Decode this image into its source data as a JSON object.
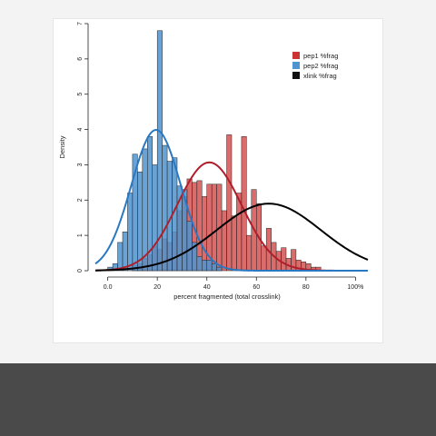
{
  "chart_data": {
    "type": "bar",
    "subtype": "histogram-with-density-curves",
    "xlabel": "percent fragmented (total crosslink)",
    "ylabel": "Density",
    "xlim": [
      -0.05,
      1.05
    ],
    "ylim": [
      0,
      7
    ],
    "x_ticks": [
      0.0,
      0.2,
      0.4,
      0.6,
      0.8,
      1.0
    ],
    "x_tick_labels": [
      "0.0",
      "20",
      "40",
      "60",
      "80",
      "100%"
    ],
    "y_ticks": [
      0,
      1,
      2,
      3,
      4,
      5,
      6,
      7
    ],
    "y_tick_labels": [
      "0",
      "1",
      "2",
      "3",
      "4",
      "5",
      "6",
      "7"
    ],
    "grid": false,
    "legend_position": "top-right",
    "bin_width": 0.02,
    "series": [
      {
        "name": "pep1 %frag",
        "color": "#cc3333",
        "curve_color": "#b01e2a",
        "bins": [
          [
            0.1,
            0.15
          ],
          [
            0.12,
            0.2
          ],
          [
            0.14,
            0.35
          ],
          [
            0.16,
            0.45
          ],
          [
            0.18,
            0.7
          ],
          [
            0.2,
            0.6
          ],
          [
            0.22,
            0.9
          ],
          [
            0.24,
            0.8
          ],
          [
            0.26,
            1.1
          ],
          [
            0.28,
            1.7
          ],
          [
            0.3,
            2.1
          ],
          [
            0.32,
            2.6
          ],
          [
            0.34,
            2.5
          ],
          [
            0.36,
            2.55
          ],
          [
            0.38,
            2.1
          ],
          [
            0.4,
            2.45
          ],
          [
            0.42,
            2.45
          ],
          [
            0.44,
            2.45
          ],
          [
            0.46,
            1.7
          ],
          [
            0.48,
            3.85
          ],
          [
            0.5,
            1.55
          ],
          [
            0.52,
            2.2
          ],
          [
            0.54,
            3.8
          ],
          [
            0.56,
            1.0
          ],
          [
            0.58,
            2.3
          ],
          [
            0.6,
            1.9
          ],
          [
            0.62,
            0.7
          ],
          [
            0.64,
            1.2
          ],
          [
            0.66,
            0.8
          ],
          [
            0.68,
            0.55
          ],
          [
            0.7,
            0.65
          ],
          [
            0.72,
            0.35
          ],
          [
            0.74,
            0.6
          ],
          [
            0.76,
            0.3
          ],
          [
            0.78,
            0.25
          ],
          [
            0.8,
            0.2
          ],
          [
            0.82,
            0.1
          ],
          [
            0.84,
            0.1
          ]
        ],
        "curve": {
          "kind": "normal",
          "mean": 0.41,
          "sd": 0.13
        }
      },
      {
        "name": "pep2 %frag",
        "color": "#4f93cf",
        "curve_color": "#2a78c2",
        "bins": [
          [
            0.0,
            0.1
          ],
          [
            0.02,
            0.2
          ],
          [
            0.04,
            0.8
          ],
          [
            0.06,
            1.1
          ],
          [
            0.08,
            2.2
          ],
          [
            0.1,
            3.3
          ],
          [
            0.12,
            2.8
          ],
          [
            0.14,
            3.45
          ],
          [
            0.16,
            3.8
          ],
          [
            0.18,
            3.0
          ],
          [
            0.2,
            6.8
          ],
          [
            0.22,
            3.55
          ],
          [
            0.24,
            3.1
          ],
          [
            0.26,
            3.2
          ],
          [
            0.28,
            2.4
          ],
          [
            0.3,
            2.3
          ],
          [
            0.32,
            1.4
          ],
          [
            0.34,
            0.8
          ],
          [
            0.36,
            0.4
          ],
          [
            0.38,
            0.3
          ],
          [
            0.4,
            0.3
          ],
          [
            0.42,
            0.2
          ],
          [
            0.44,
            0.1
          ]
        ],
        "curve": {
          "kind": "normal",
          "mean": 0.195,
          "sd": 0.1
        }
      },
      {
        "name": "xlink %frag",
        "color": "#111111",
        "curve_color": "#000000",
        "bins": [],
        "curve": {
          "kind": "normal",
          "mean": 0.65,
          "sd": 0.21
        }
      }
    ]
  }
}
